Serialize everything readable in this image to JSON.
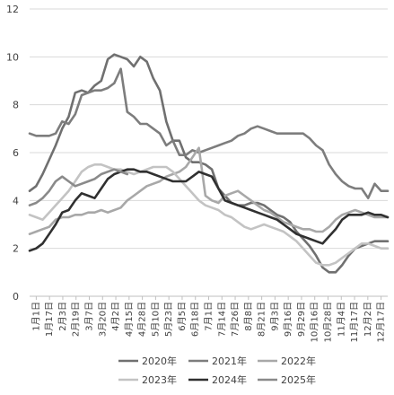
{
  "chart_data": {
    "type": "line",
    "title": "",
    "xlabel": "",
    "ylabel": "",
    "ylim": [
      0,
      12
    ],
    "yticks": [
      0,
      2,
      4,
      6,
      8,
      10,
      12
    ],
    "grid": true,
    "legend_position": "bottom",
    "x_tick_labels": [
      "1月1日",
      "1月17日",
      "2月3日",
      "2月19日",
      "3月7日",
      "3月20日",
      "4月2日",
      "4月15日",
      "4月28日",
      "5月10日",
      "5月23日",
      "6月5日",
      "6月18日",
      "7月1日",
      "7月14日",
      "7月26日",
      "8月8日",
      "8月21日",
      "9月3日",
      "9月16日",
      "9月29日",
      "10月16日",
      "10月28日",
      "11月4日",
      "11月17日",
      "12月2日",
      "12月17日"
    ],
    "series": [
      {
        "name": "2020年",
        "color": "#707070",
        "values": [
          4.4,
          4.6,
          5.1,
          5.7,
          6.3,
          7.0,
          7.5,
          8.5,
          8.6,
          8.5,
          8.8,
          9.0,
          9.9,
          10.1,
          10.0,
          9.9,
          9.6,
          10.0,
          9.8,
          9.1,
          8.6,
          7.3,
          6.5,
          6.5,
          5.8,
          5.6,
          5.6,
          5.5,
          5.3,
          4.5,
          4.2,
          3.9,
          3.8,
          3.8,
          3.9,
          3.9,
          3.8,
          3.6,
          3.4,
          3.3,
          3.1,
          2.7,
          2.4,
          2.1,
          1.7,
          1.2,
          1.0,
          1.0,
          1.3,
          1.7,
          2.0,
          2.1,
          2.2,
          2.3,
          2.3,
          2.3
        ]
      },
      {
        "name": "2021年",
        "color": "#7d7d7d",
        "values": [
          6.8,
          6.7,
          6.7,
          6.7,
          6.8,
          7.3,
          7.2,
          7.6,
          8.4,
          8.5,
          8.6,
          8.6,
          8.7,
          8.9,
          9.5,
          7.7,
          7.5,
          7.2,
          7.2,
          7.0,
          6.8,
          6.3,
          6.5,
          5.9,
          5.9,
          6.1,
          6.0,
          6.1,
          6.2,
          6.3,
          6.4,
          6.5,
          6.7,
          6.8,
          7.0,
          7.1,
          7.0,
          6.9,
          6.8,
          6.8,
          6.8,
          6.8,
          6.8,
          6.6,
          6.3,
          6.1,
          5.5,
          5.1,
          4.8,
          4.6,
          4.5,
          4.5,
          4.1,
          4.7,
          4.4,
          4.4
        ]
      },
      {
        "name": "2022年",
        "color": "#a8a8a8",
        "values": [
          2.6,
          2.7,
          2.8,
          2.9,
          3.2,
          3.3,
          3.3,
          3.4,
          3.4,
          3.5,
          3.5,
          3.6,
          3.5,
          3.6,
          3.7,
          4.0,
          4.2,
          4.4,
          4.6,
          4.7,
          4.8,
          5.0,
          5.1,
          5.2,
          5.4,
          5.8,
          6.2,
          4.2,
          4.0,
          3.9,
          4.2,
          4.3,
          4.4,
          4.2,
          4.0,
          3.8,
          3.6,
          3.5,
          3.3,
          3.1,
          3.0,
          2.9,
          2.8,
          2.8,
          2.7,
          2.7,
          2.9,
          3.2,
          3.4,
          3.5,
          3.6,
          3.5,
          3.4,
          3.3,
          3.3,
          3.3
        ]
      },
      {
        "name": "2023年",
        "color": "#c3c3c3",
        "values": [
          3.4,
          3.3,
          3.2,
          3.5,
          3.8,
          4.1,
          4.4,
          4.8,
          5.2,
          5.4,
          5.5,
          5.5,
          5.4,
          5.3,
          5.3,
          5.2,
          5.1,
          5.2,
          5.3,
          5.4,
          5.4,
          5.4,
          5.2,
          4.9,
          4.6,
          4.3,
          4.0,
          3.8,
          3.7,
          3.6,
          3.4,
          3.3,
          3.1,
          2.9,
          2.8,
          2.9,
          3.0,
          2.9,
          2.8,
          2.7,
          2.5,
          2.3,
          2.0,
          1.7,
          1.4,
          1.3,
          1.3,
          1.4,
          1.6,
          1.8,
          2.0,
          2.2,
          2.2,
          2.1,
          2.0,
          2.0
        ]
      },
      {
        "name": "2024年",
        "color": "#303030",
        "values": [
          1.9,
          2.0,
          2.2,
          2.6,
          3.0,
          3.5,
          3.6,
          4.0,
          4.3,
          4.2,
          4.1,
          4.5,
          4.9,
          5.1,
          5.2,
          5.3,
          5.3,
          5.2,
          5.2,
          5.1,
          5.0,
          4.9,
          4.8,
          4.8,
          4.8,
          5.0,
          5.2,
          5.1,
          5.0,
          4.5,
          4.0,
          3.9,
          3.8,
          3.7,
          3.6,
          3.5,
          3.4,
          3.3,
          3.2,
          3.0,
          2.8,
          2.6,
          2.5,
          2.4,
          2.3,
          2.2,
          2.5,
          2.8,
          3.2,
          3.4,
          3.4,
          3.4,
          3.5,
          3.4,
          3.4,
          3.3
        ]
      },
      {
        "name": "2025年",
        "color": "#8a8a8a",
        "values": [
          3.8,
          3.9,
          4.1,
          4.4,
          4.8,
          5.0,
          4.8,
          4.6,
          4.7,
          4.8,
          4.9,
          5.1,
          5.2,
          5.3,
          5.2,
          5.1
        ]
      }
    ]
  }
}
